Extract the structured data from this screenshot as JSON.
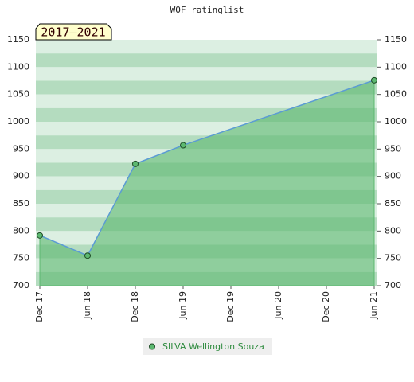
{
  "chart_data": {
    "type": "area",
    "title": "WOF ratinglist",
    "badge": "2017–2021",
    "x": [
      "Dec 17",
      "Jun 18",
      "Dec 18",
      "Jun 19",
      "Jun 21"
    ],
    "xticks": [
      "Dec 17",
      "Jun 18",
      "Dec 18",
      "Jun 19",
      "Dec 19",
      "Jun 20",
      "Dec 20",
      "Jun 21"
    ],
    "series": [
      {
        "name": "SILVA Wellington Souza",
        "color": "#5cb870",
        "values": [
          792,
          755,
          923,
          957,
          1076
        ]
      }
    ],
    "ylim": [
      700,
      1150
    ],
    "yticks": [
      700,
      750,
      800,
      850,
      900,
      950,
      1000,
      1050,
      1100,
      1150
    ]
  }
}
